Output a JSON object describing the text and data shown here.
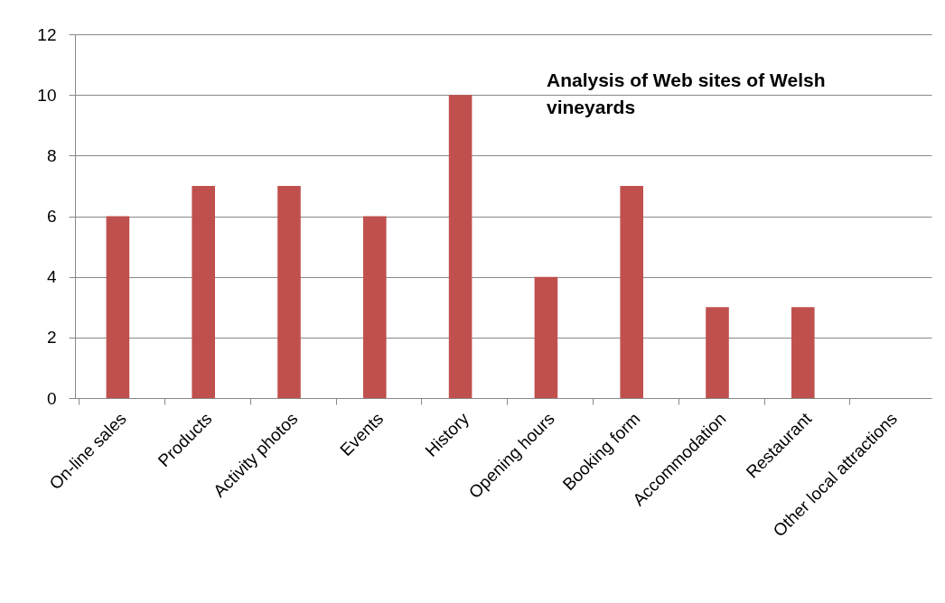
{
  "chart_data": {
    "type": "bar",
    "title": "Analysis of Web sites of Welsh vineyards",
    "categories": [
      "On-line sales",
      "Products",
      "Activity photos",
      "Events",
      "History",
      "Opening hours",
      "Booking form",
      "Accommodation",
      "Restaurant",
      "Other local  attractions"
    ],
    "values": [
      6,
      7,
      7,
      6,
      10,
      4,
      7,
      3,
      3,
      0
    ],
    "color": "#c0504d",
    "ylim": [
      0,
      12
    ],
    "yticks": [
      0,
      2,
      4,
      6,
      8,
      10,
      12
    ],
    "grid": "y"
  }
}
